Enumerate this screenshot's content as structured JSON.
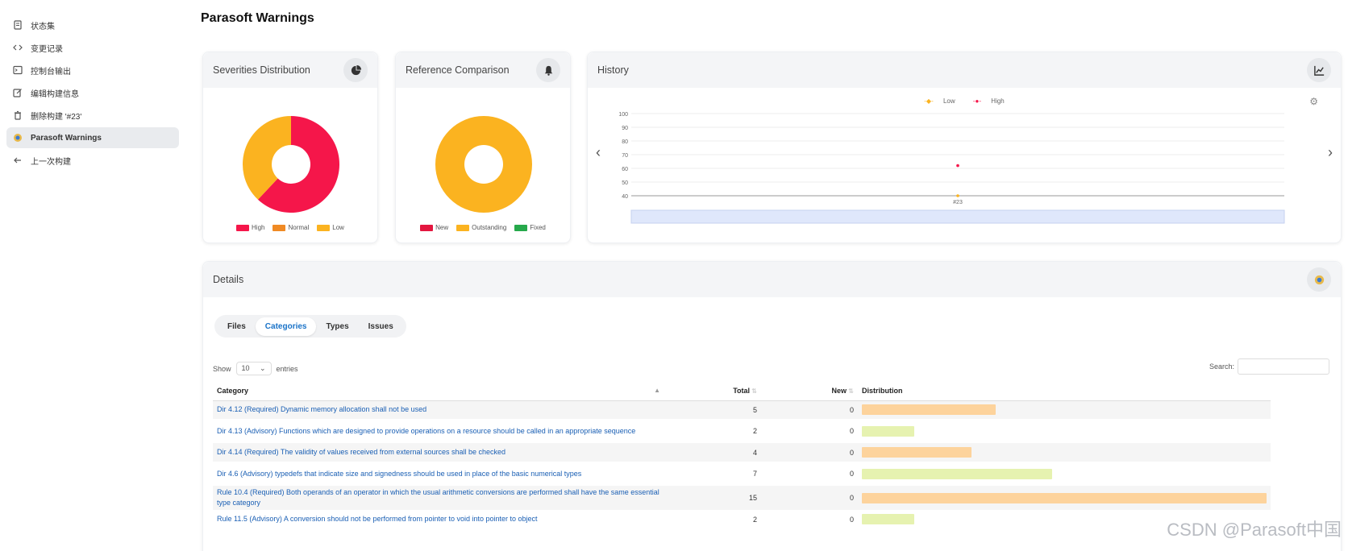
{
  "sidebar": {
    "items": [
      {
        "label": "状态集",
        "icon": "document-icon",
        "active": false
      },
      {
        "label": "变更记录",
        "icon": "code-icon",
        "active": false
      },
      {
        "label": "控制台输出",
        "icon": "terminal-icon",
        "active": false
      },
      {
        "label": "编辑构建信息",
        "icon": "edit-icon",
        "active": false
      },
      {
        "label": "删除构建 '#23'",
        "icon": "trash-icon",
        "active": false
      },
      {
        "label": "Parasoft Warnings",
        "icon": "parasoft-icon",
        "active": true
      },
      {
        "label": "上一次构建",
        "icon": "arrow-left-icon",
        "active": false
      }
    ]
  },
  "page_title": "Parasoft Warnings",
  "severities": {
    "title": "Severities Distribution",
    "legend": [
      {
        "label": "High",
        "color": "#f5164a"
      },
      {
        "label": "Normal",
        "color": "#f08a24"
      },
      {
        "label": "Low",
        "color": "#fbb320"
      }
    ],
    "chart_data": {
      "type": "pie",
      "categories": [
        "High",
        "Normal",
        "Low"
      ],
      "values": [
        62,
        0,
        38
      ]
    }
  },
  "reference": {
    "title": "Reference Comparison",
    "legend": [
      {
        "label": "New",
        "color": "#e3163f"
      },
      {
        "label": "Outstanding",
        "color": "#fbb320"
      },
      {
        "label": "Fixed",
        "color": "#26a94b"
      }
    ],
    "chart_data": {
      "type": "pie",
      "categories": [
        "New",
        "Outstanding",
        "Fixed"
      ],
      "values": [
        0,
        100,
        0
      ]
    }
  },
  "history": {
    "title": "History",
    "legend": [
      {
        "label": "Low",
        "color": "#fbb320"
      },
      {
        "label": "High",
        "color": "#f5164a"
      }
    ],
    "chart_data": {
      "type": "line",
      "x": [
        "#23"
      ],
      "series": [
        {
          "name": "Low",
          "values": [
            38
          ]
        },
        {
          "name": "High",
          "values": [
            62
          ]
        }
      ],
      "y_ticks": [
        100,
        90,
        80,
        70,
        60,
        50,
        40
      ],
      "ylim": [
        40,
        100
      ]
    }
  },
  "details": {
    "title": "Details",
    "tabs": [
      "Files",
      "Categories",
      "Types",
      "Issues"
    ],
    "active_tab": "Categories",
    "show_label": "Show",
    "entries_value": "10",
    "entries_label": "entries",
    "search_label": "Search:",
    "columns": {
      "category": "Category",
      "total": "Total",
      "new": "New",
      "distribution": "Distribution"
    },
    "rows": [
      {
        "category": "Dir 4.12 (Required) Dynamic memory allocation shall not be used",
        "total": "5",
        "new": "0",
        "bar": 0.33,
        "color": "#fdd39c"
      },
      {
        "category": "Dir 4.13 (Advisory) Functions which are designed to provide operations on a resource should be called in an appropriate sequence",
        "total": "2",
        "new": "0",
        "bar": 0.13,
        "color": "#e6f2b0"
      },
      {
        "category": "Dir 4.14 (Required) The validity of values received from external sources shall be checked",
        "total": "4",
        "new": "0",
        "bar": 0.27,
        "color": "#fdd39c"
      },
      {
        "category": "Dir 4.6 (Advisory) typedefs that indicate size and signedness should be used in place of the basic numerical types",
        "total": "7",
        "new": "0",
        "bar": 0.47,
        "color": "#e6f2b0"
      },
      {
        "category": "Rule 10.4 (Required) Both operands of an operator in which the usual arithmetic conversions are performed shall have the same essential type category",
        "total": "15",
        "new": "0",
        "bar": 1.0,
        "color": "#fdd39c"
      },
      {
        "category": "Rule 11.5 (Advisory) A conversion should not be performed from pointer to void into pointer to object",
        "total": "2",
        "new": "0",
        "bar": 0.13,
        "color": "#e6f2b0"
      }
    ]
  },
  "watermark": "CSDN @Parasoft中国"
}
